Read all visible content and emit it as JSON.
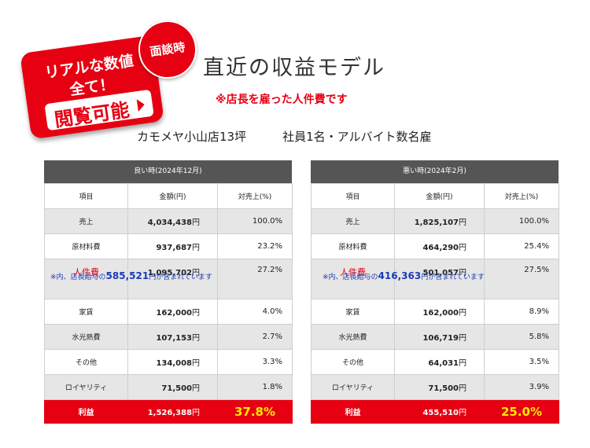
{
  "badge": {
    "line1": "リアルな数値",
    "line2": "全て！",
    "cta": "閲覧可能",
    "circle": "面談時"
  },
  "title": "直近の収益モデル",
  "note": "※店長を雇った人件費です",
  "store": {
    "name": "カモメヤ小山店13坪",
    "staff": "社員1名・アルバイト数名雇"
  },
  "columns": {
    "item": "項目",
    "amount": "金額(円)",
    "ratio": "対売上(%)"
  },
  "good": {
    "header": "良い時(2024年12月)",
    "rows": [
      {
        "item": "売上",
        "amount": "4,034,438",
        "ratio": "100.0%"
      },
      {
        "item": "原材料費",
        "amount": "937,687",
        "ratio": "23.2%"
      },
      {
        "item": "人件費",
        "amount": "1,095,702",
        "ratio": "27.2%"
      },
      {
        "item": "家賃",
        "amount": "162,000",
        "ratio": "4.0%"
      },
      {
        "item": "水光熱費",
        "amount": "107,153",
        "ratio": "2.7%"
      },
      {
        "item": "その他",
        "amount": "134,008",
        "ratio": "3.3%"
      },
      {
        "item": "ロイヤリティ",
        "amount": "71,500",
        "ratio": "1.8%"
      }
    ],
    "labor_note": {
      "prefix": "※内、店長給与の",
      "value": "585,521",
      "suffix": "円が含まれています"
    },
    "total": {
      "item": "利益",
      "amount": "1,526,388",
      "ratio": "37.8%"
    }
  },
  "bad": {
    "header": "悪い時(2024年2月)",
    "rows": [
      {
        "item": "売上",
        "amount": "1,825,107",
        "ratio": "100.0%"
      },
      {
        "item": "原材料費",
        "amount": "464,290",
        "ratio": "25.4%"
      },
      {
        "item": "人件費",
        "amount": "501,057",
        "ratio": "27.5%"
      },
      {
        "item": "家賃",
        "amount": "162,000",
        "ratio": "8.9%"
      },
      {
        "item": "水光熱費",
        "amount": "106,719",
        "ratio": "5.8%"
      },
      {
        "item": "その他",
        "amount": "64,031",
        "ratio": "3.5%"
      },
      {
        "item": "ロイヤリティ",
        "amount": "71,500",
        "ratio": "3.9%"
      }
    ],
    "labor_note": {
      "prefix": "※内、店長給与の",
      "value": "416,363",
      "suffix": "円が含まれています"
    },
    "total": {
      "item": "利益",
      "amount": "455,510",
      "ratio": "25.0%"
    }
  },
  "yen": "円",
  "colors": {
    "accent": "#e60012",
    "header": "#555555",
    "note": "#1a3bb5",
    "highlight": "#ffe800"
  }
}
